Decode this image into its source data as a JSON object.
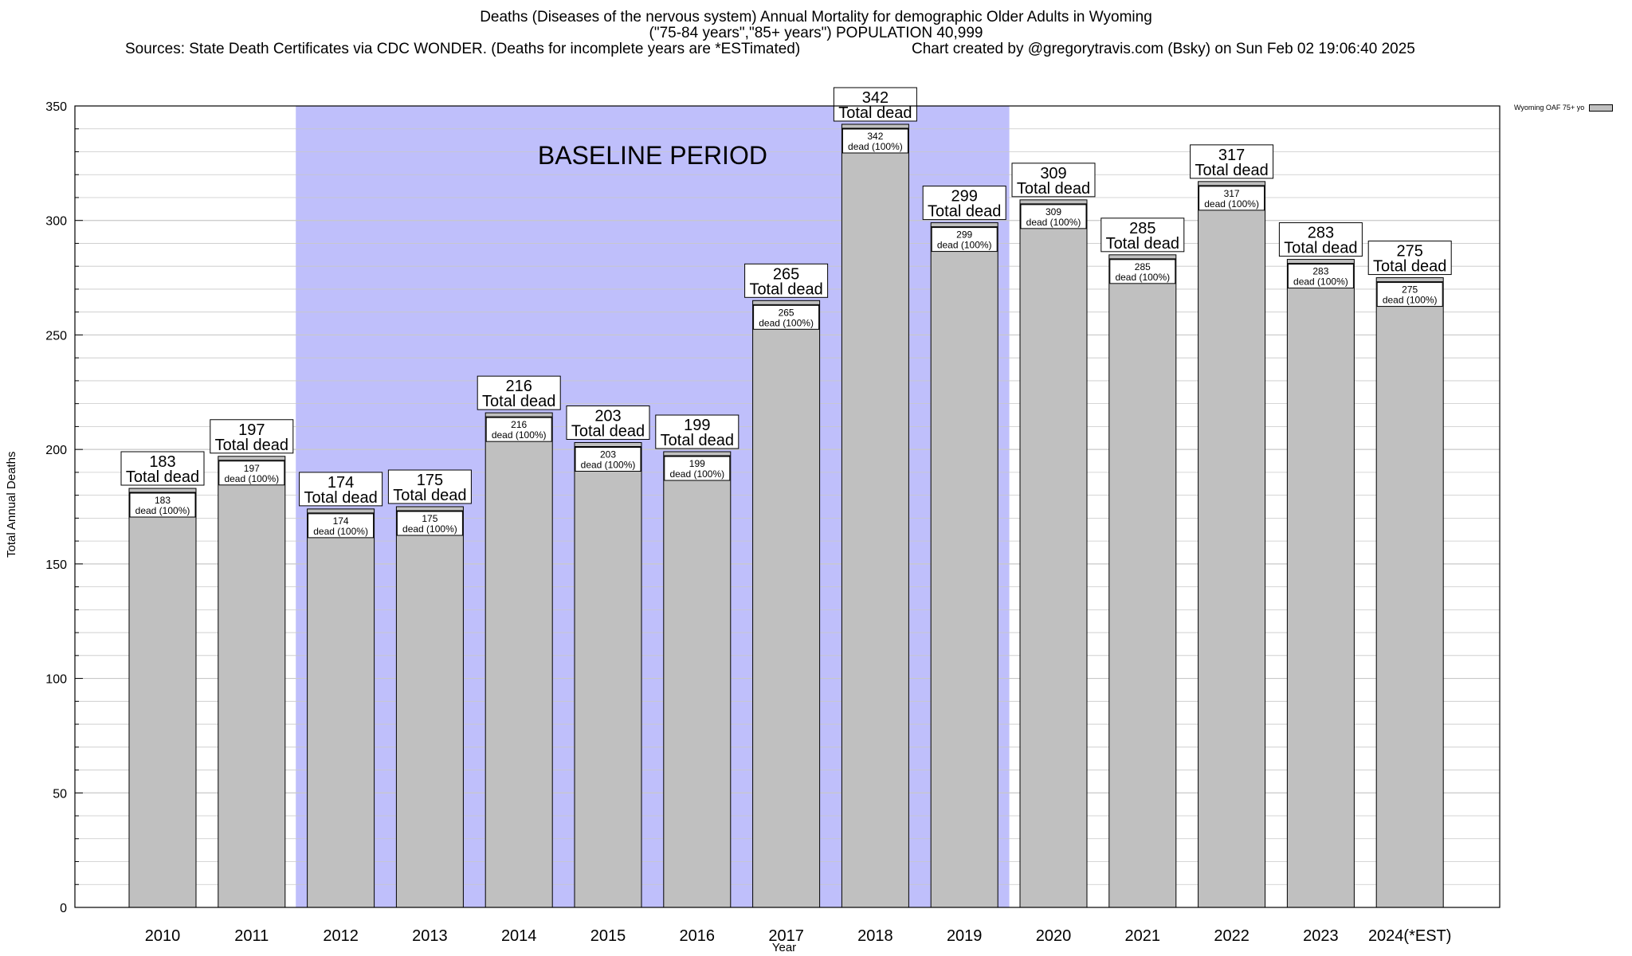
{
  "title": {
    "line1": "Deaths (Diseases of the nervous system) Annual Mortality for demographic Older Adults in Wyoming",
    "line2": "(\"75-84 years\",\"85+ years\") POPULATION 40,999",
    "sources": "Sources: State Death Certificates via CDC WONDER. (Deaths for incomplete years are *ESTimated)",
    "credit": "Chart created by @gregorytravis.com (Bsky) on Sun Feb 02 19:06:40 2025"
  },
  "chart_data": {
    "type": "bar",
    "title": "Deaths (Diseases of the nervous system) Annual Mortality for demographic Older Adults in Wyoming",
    "xlabel": "Year",
    "ylabel": "Total Annual Deaths",
    "ylim": [
      0,
      350
    ],
    "yticks": [
      0,
      50,
      100,
      150,
      200,
      250,
      300,
      350
    ],
    "grid": true,
    "legend_position": "top-right",
    "categories": [
      "2010",
      "2011",
      "2012",
      "2013",
      "2014",
      "2015",
      "2016",
      "2017",
      "2018",
      "2019",
      "2020",
      "2021",
      "2022",
      "2023",
      "2024(*EST)"
    ],
    "series": [
      {
        "name": "Wyoming OAF 75+ yo",
        "values": [
          183,
          197,
          174,
          175,
          216,
          203,
          199,
          265,
          342,
          299,
          309,
          285,
          317,
          283,
          275
        ]
      }
    ],
    "total_label": "Total dead",
    "inner_label_suffix": "dead (100%)",
    "baseline": {
      "label": "BASELINE PERIOD",
      "start": "2012",
      "end": "2019"
    },
    "colors": {
      "bar": "#c0c0c0",
      "baseline": "#bfbffb",
      "grid": "#c8c8c8"
    }
  }
}
